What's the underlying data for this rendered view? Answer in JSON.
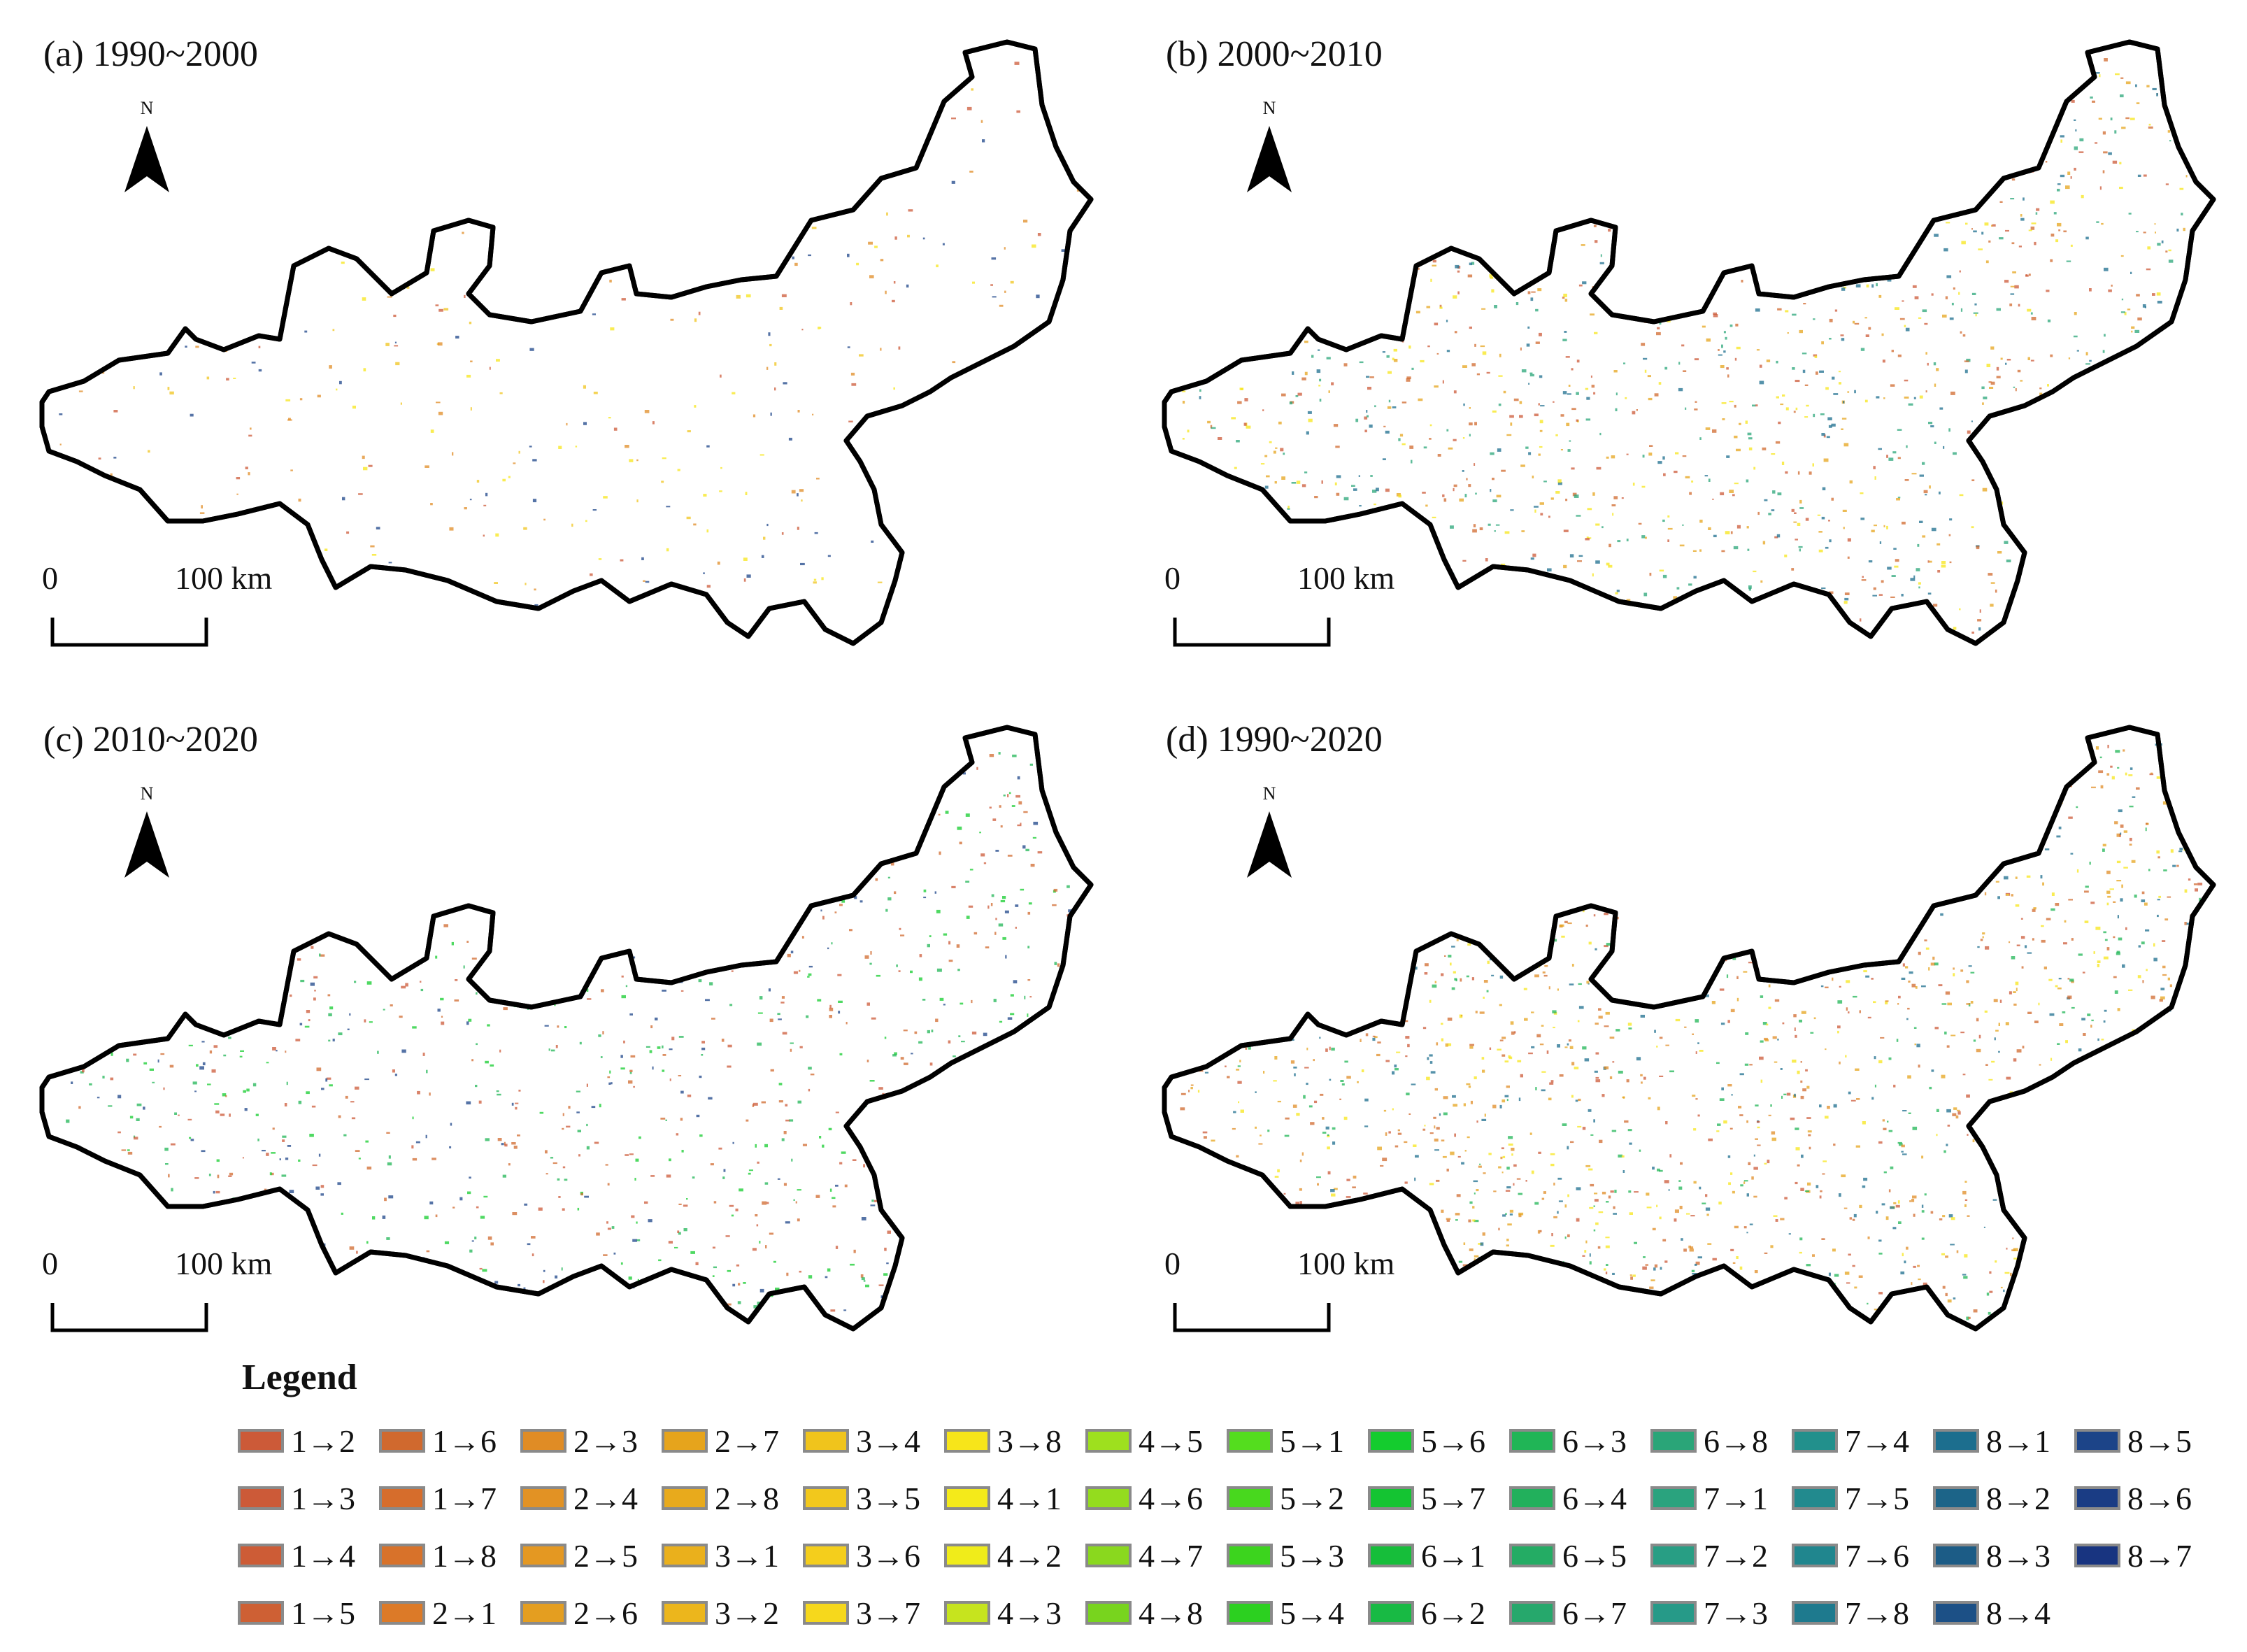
{
  "panels": [
    {
      "title": "(a) 1990~2000",
      "north": "N",
      "scale_zero": "0",
      "scale_max": "100 km"
    },
    {
      "title": "(b) 2000~2010",
      "north": "N",
      "scale_zero": "0",
      "scale_max": "100 km"
    },
    {
      "title": "(c) 2010~2020",
      "north": "N",
      "scale_zero": "0",
      "scale_max": "100 km"
    },
    {
      "title": "(d) 1990~2020",
      "north": "N",
      "scale_zero": "0",
      "scale_max": "100 km"
    }
  ],
  "legend": {
    "title": "Legend",
    "rows": [
      [
        {
          "label": "1→2",
          "color": "#cc5a38"
        },
        {
          "label": "1→6",
          "color": "#d0692e"
        },
        {
          "label": "2→3",
          "color": "#e08c25"
        },
        {
          "label": "2→7",
          "color": "#e6a41c"
        },
        {
          "label": "3→4",
          "color": "#f0c41c"
        },
        {
          "label": "3→8",
          "color": "#f7e51a"
        },
        {
          "label": "4→5",
          "color": "#9ee01e"
        },
        {
          "label": "5→1",
          "color": "#54dd1e"
        },
        {
          "label": "5→6",
          "color": "#14cc2e"
        },
        {
          "label": "6→3",
          "color": "#20b556"
        },
        {
          "label": "6→8",
          "color": "#2aa578"
        },
        {
          "label": "7→4",
          "color": "#22908c"
        },
        {
          "label": "8→1",
          "color": "#1c6e8e"
        },
        {
          "label": "8→5",
          "color": "#1c4488"
        }
      ],
      [
        {
          "label": "1→3",
          "color": "#cc5a38"
        },
        {
          "label": "1→7",
          "color": "#d66d2c"
        },
        {
          "label": "2→4",
          "color": "#e29224"
        },
        {
          "label": "2→8",
          "color": "#e8aa1c"
        },
        {
          "label": "3→5",
          "color": "#f2c81c"
        },
        {
          "label": "4→1",
          "color": "#f4ea1a"
        },
        {
          "label": "4→6",
          "color": "#94dc1e"
        },
        {
          "label": "5→2",
          "color": "#48d81e"
        },
        {
          "label": "5→7",
          "color": "#14c432"
        },
        {
          "label": "6→4",
          "color": "#22b05c"
        },
        {
          "label": "7→1",
          "color": "#2aa37e"
        },
        {
          "label": "7→5",
          "color": "#228a8e"
        },
        {
          "label": "8→2",
          "color": "#1c6488"
        },
        {
          "label": "8→6",
          "color": "#1a3c84"
        }
      ],
      [
        {
          "label": "1→4",
          "color": "#cd5c36"
        },
        {
          "label": "1→8",
          "color": "#d8722a"
        },
        {
          "label": "2→5",
          "color": "#e49822"
        },
        {
          "label": "3→1",
          "color": "#eab01c"
        },
        {
          "label": "3→6",
          "color": "#f4ce1c"
        },
        {
          "label": "4→2",
          "color": "#f0ec1a"
        },
        {
          "label": "4→7",
          "color": "#8ad81e"
        },
        {
          "label": "5→3",
          "color": "#3cd41e"
        },
        {
          "label": "6→1",
          "color": "#16be3a"
        },
        {
          "label": "6→5",
          "color": "#24ac64"
        },
        {
          "label": "7→2",
          "color": "#289e84"
        },
        {
          "label": "7→6",
          "color": "#20868e"
        },
        {
          "label": "8→3",
          "color": "#1c5c86"
        },
        {
          "label": "8→7",
          "color": "#183480"
        }
      ],
      [
        {
          "label": "1→5",
          "color": "#ce6034"
        },
        {
          "label": "2→1",
          "color": "#dc7a28"
        },
        {
          "label": "2→6",
          "color": "#e49e20"
        },
        {
          "label": "3→2",
          "color": "#ecb61c"
        },
        {
          "label": "3→7",
          "color": "#f6d81c"
        },
        {
          "label": "4→3",
          "color": "#c6e41e"
        },
        {
          "label": "4→8",
          "color": "#78d41e"
        },
        {
          "label": "5→4",
          "color": "#2cd020"
        },
        {
          "label": "6→2",
          "color": "#18ba44"
        },
        {
          "label": "6→7",
          "color": "#26a86c"
        },
        {
          "label": "7→3",
          "color": "#269a88"
        },
        {
          "label": "7→8",
          "color": "#1e7a8e"
        },
        {
          "label": "8→4",
          "color": "#1c5086"
        }
      ]
    ]
  }
}
